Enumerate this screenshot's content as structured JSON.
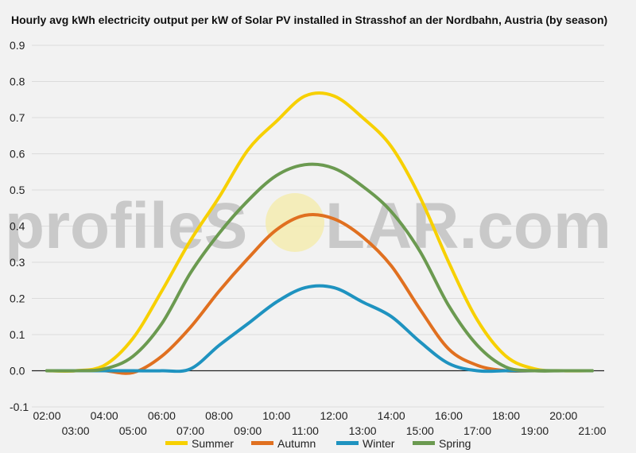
{
  "chart_data": {
    "type": "line",
    "title": "Hourly avg kWh electricity output per kW of Solar PV installed in Strasshof an der Nordbahn, Austria (by season)",
    "xlabel": "",
    "ylabel": "",
    "x": [
      "02:00",
      "03:00",
      "04:00",
      "05:00",
      "06:00",
      "07:00",
      "08:00",
      "09:00",
      "10:00",
      "11:00",
      "12:00",
      "13:00",
      "14:00",
      "15:00",
      "16:00",
      "17:00",
      "18:00",
      "19:00",
      "20:00",
      "21:00"
    ],
    "x_tick_labels": [
      "02:00",
      "03:00",
      "04:00",
      "05:00",
      "06:00",
      "07:00",
      "08:00",
      "09:00",
      "10:00",
      "11:00",
      "12:00",
      "13:00",
      "14:00",
      "15:00",
      "16:00",
      "17:00",
      "18:00",
      "19:00",
      "20:00",
      "21:00"
    ],
    "ylim": [
      -0.1,
      0.9
    ],
    "y_ticks": [
      -0.1,
      0.0,
      0.1,
      0.2,
      0.3,
      0.4,
      0.5,
      0.6,
      0.7,
      0.8,
      0.9
    ],
    "y_tick_labels": [
      "-0.1",
      "0.0",
      "0.1",
      "0.2",
      "0.3",
      "0.4",
      "0.5",
      "0.6",
      "0.7",
      "0.8",
      "0.9"
    ],
    "grid": true,
    "legend_position": "bottom",
    "watermark": {
      "left": "profileS",
      "right": "LAR.com"
    },
    "series": [
      {
        "name": "Summer",
        "color": "#f7d000",
        "values": [
          0,
          0,
          0.015,
          0.09,
          0.22,
          0.36,
          0.48,
          0.61,
          0.69,
          0.76,
          0.76,
          0.7,
          0.62,
          0.48,
          0.3,
          0.14,
          0.04,
          0.005,
          0,
          0
        ]
      },
      {
        "name": "Autumn",
        "color": "#e07020",
        "values": [
          0,
          0,
          0,
          -0.005,
          0.04,
          0.12,
          0.22,
          0.31,
          0.39,
          0.43,
          0.42,
          0.37,
          0.29,
          0.17,
          0.06,
          0.015,
          0,
          0,
          0,
          0
        ]
      },
      {
        "name": "Winter",
        "color": "#1f93c0",
        "values": [
          0,
          0,
          0,
          0,
          0,
          0.005,
          0.07,
          0.13,
          0.19,
          0.23,
          0.23,
          0.19,
          0.15,
          0.08,
          0.02,
          0,
          0,
          0,
          0,
          0
        ]
      },
      {
        "name": "Spring",
        "color": "#6b9a50",
        "values": [
          0,
          0,
          0.005,
          0.04,
          0.13,
          0.27,
          0.38,
          0.47,
          0.54,
          0.57,
          0.56,
          0.51,
          0.44,
          0.33,
          0.18,
          0.07,
          0.01,
          0,
          0,
          0
        ]
      }
    ]
  }
}
